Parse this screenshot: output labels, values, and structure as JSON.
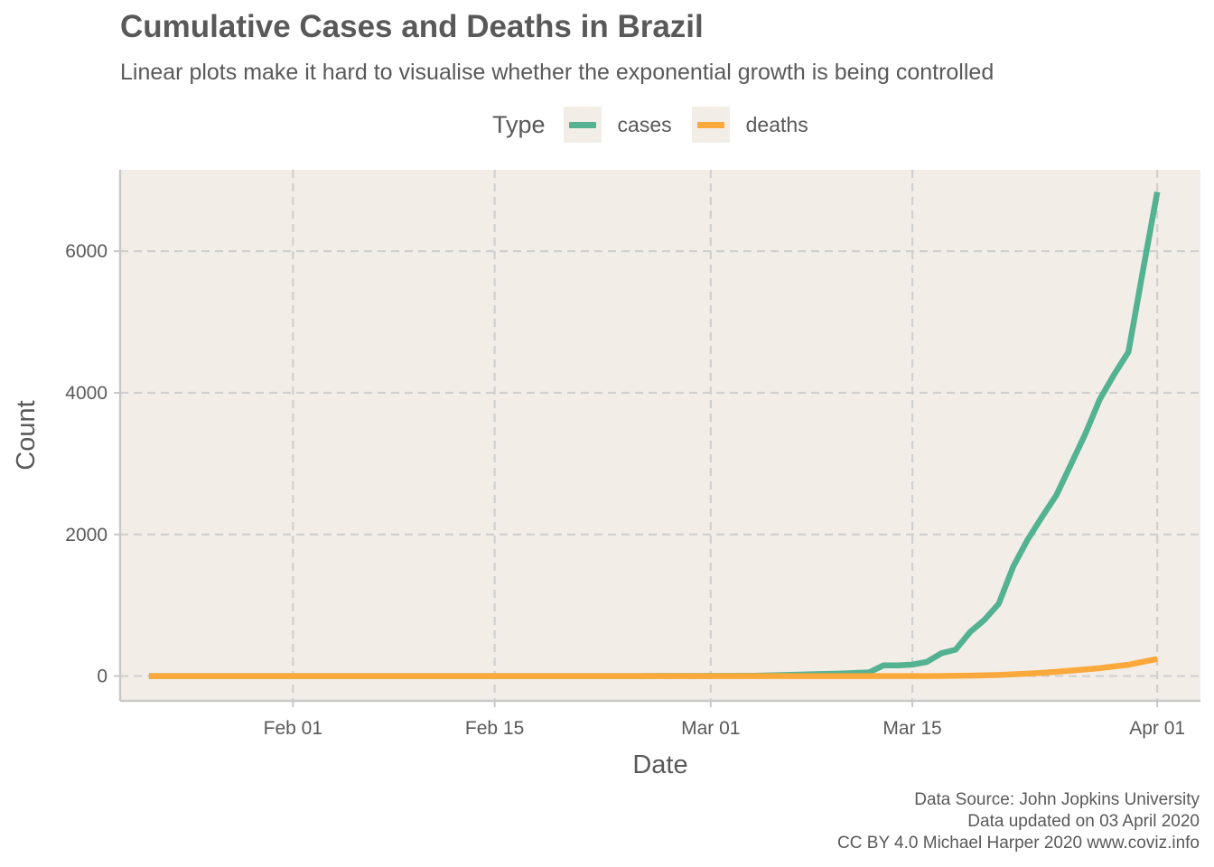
{
  "chart_data": {
    "type": "line",
    "title": "Cumulative Cases and Deaths in Brazil",
    "subtitle": "Linear plots make it hard to visualise whether the exponential growth is being controlled",
    "xlabel": "Date",
    "ylabel": "Count",
    "legend_title": "Type",
    "legend_position": "top",
    "x_ticks": [
      {
        "date": "2020-02-01",
        "label": "Feb 01"
      },
      {
        "date": "2020-02-15",
        "label": "Feb 15"
      },
      {
        "date": "2020-03-01",
        "label": "Mar 01"
      },
      {
        "date": "2020-03-15",
        "label": "Mar 15"
      },
      {
        "date": "2020-04-01",
        "label": "Apr 01"
      }
    ],
    "y_ticks": [
      0,
      2000,
      4000,
      6000
    ],
    "xlim": [
      "2020-01-20",
      "2020-04-04"
    ],
    "ylim": [
      -350,
      7150
    ],
    "grid": true,
    "series": [
      {
        "name": "cases",
        "color": "#52b292",
        "points": [
          [
            "2020-01-22",
            0
          ],
          [
            "2020-02-25",
            0
          ],
          [
            "2020-02-26",
            1
          ],
          [
            "2020-03-01",
            2
          ],
          [
            "2020-03-04",
            4
          ],
          [
            "2020-03-06",
            13
          ],
          [
            "2020-03-08",
            25
          ],
          [
            "2020-03-10",
            34
          ],
          [
            "2020-03-12",
            52
          ],
          [
            "2020-03-13",
            151
          ],
          [
            "2020-03-14",
            151
          ],
          [
            "2020-03-15",
            162
          ],
          [
            "2020-03-16",
            200
          ],
          [
            "2020-03-17",
            321
          ],
          [
            "2020-03-18",
            372
          ],
          [
            "2020-03-19",
            621
          ],
          [
            "2020-03-20",
            793
          ],
          [
            "2020-03-21",
            1021
          ],
          [
            "2020-03-22",
            1546
          ],
          [
            "2020-03-23",
            1924
          ],
          [
            "2020-03-24",
            2247
          ],
          [
            "2020-03-25",
            2554
          ],
          [
            "2020-03-26",
            2985
          ],
          [
            "2020-03-27",
            3417
          ],
          [
            "2020-03-28",
            3904
          ],
          [
            "2020-03-29",
            4256
          ],
          [
            "2020-03-30",
            4579
          ],
          [
            "2020-03-31",
            5717
          ],
          [
            "2020-04-01",
            6836
          ]
        ]
      },
      {
        "name": "deaths",
        "color": "#fba93c",
        "points": [
          [
            "2020-01-22",
            0
          ],
          [
            "2020-03-16",
            0
          ],
          [
            "2020-03-17",
            1
          ],
          [
            "2020-03-18",
            3
          ],
          [
            "2020-03-19",
            6
          ],
          [
            "2020-03-20",
            11
          ],
          [
            "2020-03-21",
            15
          ],
          [
            "2020-03-22",
            25
          ],
          [
            "2020-03-23",
            34
          ],
          [
            "2020-03-24",
            46
          ],
          [
            "2020-03-25",
            59
          ],
          [
            "2020-03-26",
            77
          ],
          [
            "2020-03-27",
            92
          ],
          [
            "2020-03-28",
            111
          ],
          [
            "2020-03-29",
            136
          ],
          [
            "2020-03-30",
            159
          ],
          [
            "2020-03-31",
            201
          ],
          [
            "2020-04-01",
            240
          ]
        ]
      }
    ]
  },
  "caption": {
    "line1": "Data Source: John Jopkins University",
    "line2": "Data updated on 03 April 2020",
    "line3": "CC BY 4.0 Michael Harper 2020 www.coviz.info"
  }
}
